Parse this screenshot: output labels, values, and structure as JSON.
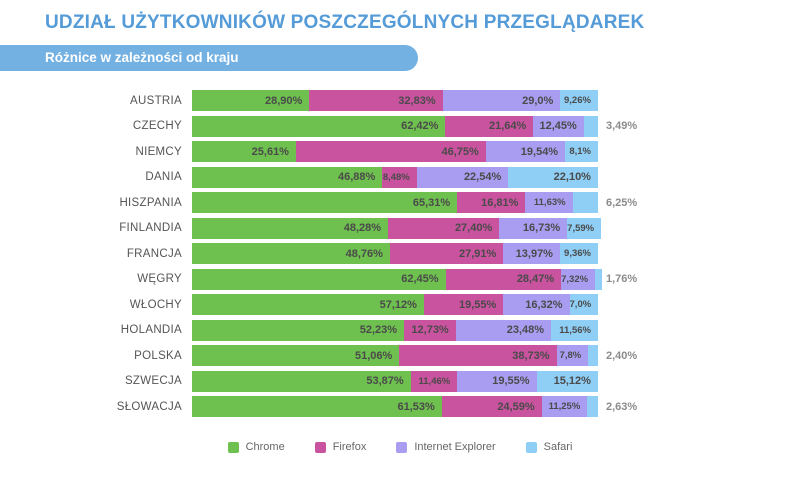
{
  "header": {
    "title": "UDZIAŁ UŻYTKOWNIKÓW POSZCZEGÓLNYCH PRZEGLĄDAREK",
    "subtitle": "Różnice w zależności od kraju"
  },
  "colors": {
    "title_text": "#549bd7",
    "subtitle_band": "#74b1e3",
    "subtitle_text": "#ffffff",
    "country_label": "#555555",
    "inside_label": "#4a4a4a",
    "outside_label": "#8c8c8c",
    "legend_text": "#666666"
  },
  "chart_data": {
    "type": "bar",
    "orientation": "horizontal",
    "stacked": true,
    "unit": "%",
    "xlim": [
      0,
      100
    ],
    "grid": false,
    "legend_position": "bottom",
    "title": "UDZIAŁ UŻYTKOWNIKÓW POSZCZEGÓLNYCH PRZEGLĄDAREK",
    "subtitle": "Różnice w zależności od kraju",
    "categories": [
      "AUSTRIA",
      "CZECHY",
      "NIEMCY",
      "DANIA",
      "HISZPANIA",
      "FINLANDIA",
      "FRANCJA",
      "WĘGRY",
      "WŁOCHY",
      "HOLANDIA",
      "POLSKA",
      "SZWECJA",
      "SŁOWACJA"
    ],
    "series": [
      {
        "name": "Chrome",
        "color": "#6ec04f",
        "values": [
          28.9,
          62.42,
          25.61,
          46.88,
          65.31,
          48.28,
          48.76,
          62.45,
          57.12,
          52.23,
          51.06,
          53.87,
          61.53
        ],
        "labels": [
          "28,90%",
          "62,42%",
          "25,61%",
          "46,88%",
          "65,31%",
          "48,28%",
          "48,76%",
          "62,45%",
          "57,12%",
          "52,23%",
          "51,06%",
          "53,87%",
          "61,53%"
        ]
      },
      {
        "name": "Firefox",
        "color": "#c9539e",
        "values": [
          32.83,
          21.64,
          46.75,
          8.48,
          16.81,
          27.4,
          27.91,
          28.47,
          19.55,
          12.73,
          38.73,
          11.46,
          24.59
        ],
        "labels": [
          "32,83%",
          "21,64%",
          "46,75%",
          "8,48%",
          "16,81%",
          "27,40%",
          "27,91%",
          "28,47%",
          "19,55%",
          "12,73%",
          "38,73%",
          "11,46%",
          "24,59%"
        ]
      },
      {
        "name": "Internet Explorer",
        "color": "#a99df1",
        "values": [
          29.0,
          12.45,
          19.54,
          22.54,
          11.63,
          16.73,
          13.97,
          7.32,
          16.32,
          23.48,
          7.8,
          19.55,
          11.25
        ],
        "labels": [
          "29,0%",
          "12,45%",
          "19,54%",
          "22,54%",
          "11,63%",
          "16,73%",
          "13,97%",
          "7,32%",
          "16,32%",
          "23,48%",
          "7,8%",
          "19,55%",
          "11,25%"
        ]
      },
      {
        "name": "Safari",
        "color": "#8fcef5",
        "values": [
          9.26,
          3.49,
          8.1,
          22.1,
          6.25,
          7.59,
          9.36,
          1.76,
          7.0,
          11.56,
          2.4,
          15.12,
          2.63
        ],
        "labels": [
          "9,26%",
          "3,49%",
          "8,1%",
          "22,10%",
          "6,25%",
          "7,59%",
          "9,36%",
          "1,76%",
          "7,0%",
          "11,56%",
          "2,40%",
          "15,12%",
          "2,63%"
        ]
      }
    ]
  },
  "legend": {
    "items": [
      {
        "label": "Chrome",
        "color": "#6ec04f"
      },
      {
        "label": "Firefox",
        "color": "#c9539e"
      },
      {
        "label": "Internet Explorer",
        "color": "#a99df1"
      },
      {
        "label": "Safari",
        "color": "#8fcef5"
      }
    ]
  }
}
